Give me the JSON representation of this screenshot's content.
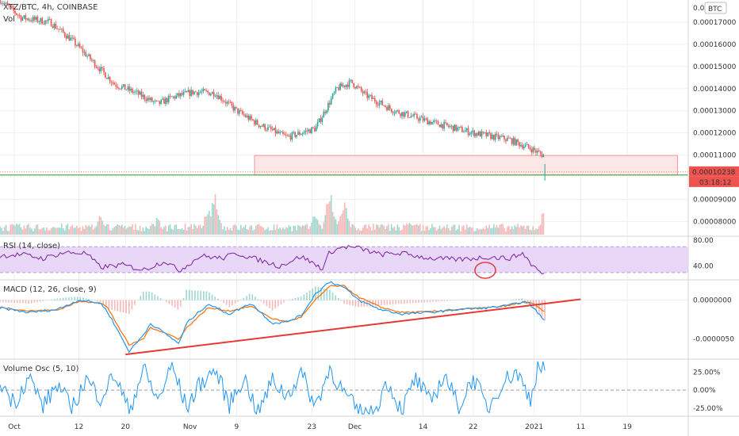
{
  "header": {
    "symbol_line": "XTZ/BTC, 4h, COINBASE",
    "vol_label": "Vol",
    "currency_badge": "BTC",
    "price_axis_top": "0.0("
  },
  "colors": {
    "up": "#26a69a",
    "down": "#ef5350",
    "rsi_line": "#7b1fa2",
    "rsi_band": "#e9d7f7",
    "macd_line": "#2196f3",
    "signal_line": "#ff6d00",
    "vol_osc_line": "#2196f3",
    "trendline": "#e53935",
    "support_line": "#4caf50",
    "zone_fill": "#fde6e6",
    "zone_border": "#ef9a9a",
    "price_tag_bg": "#ef5350"
  },
  "chart_data": [
    {
      "type": "candlestick",
      "panel": "price",
      "y_axis_labels": [
        "0.00017000",
        "0.00016000",
        "0.00015000",
        "0.00014000",
        "0.00013000",
        "0.00012000",
        "0.00011000",
        "0.00009000",
        "0.00008000"
      ],
      "ylim": [
        7.55e-05,
        0.00018
      ],
      "path": [
        {
          "x": 0,
          "y": 0.00018
        },
        {
          "x": 3,
          "y": 0.000172
        },
        {
          "x": 7,
          "y": 0.00017
        },
        {
          "x": 10,
          "y": 0.000162
        },
        {
          "x": 13,
          "y": 0.000152
        },
        {
          "x": 16,
          "y": 0.000142
        },
        {
          "x": 19,
          "y": 0.000138
        },
        {
          "x": 22,
          "y": 0.000133
        },
        {
          "x": 24,
          "y": 0.000136
        },
        {
          "x": 27,
          "y": 0.0001385
        },
        {
          "x": 30,
          "y": 0.000138
        },
        {
          "x": 33,
          "y": 0.00013
        },
        {
          "x": 36,
          "y": 0.000124
        },
        {
          "x": 40,
          "y": 0.000118
        },
        {
          "x": 44,
          "y": 0.000122
        },
        {
          "x": 47,
          "y": 0.00014
        },
        {
          "x": 49,
          "y": 0.000143
        },
        {
          "x": 51,
          "y": 0.000137
        },
        {
          "x": 55,
          "y": 0.00013
        },
        {
          "x": 60,
          "y": 0.000125
        },
        {
          "x": 66,
          "y": 0.00012
        },
        {
          "x": 71,
          "y": 0.000117
        },
        {
          "x": 74,
          "y": 0.000113
        },
        {
          "x": 76,
          "y": 0.0001095
        }
      ],
      "resistance_zone": {
        "x_start": 35.5,
        "x_end": 94.5,
        "y_low": 0.000101,
        "y_high": 0.0001098
      },
      "support_line_y": 0.000101,
      "last_price_label": "0.00010238",
      "last_price": 0.00010238,
      "countdown_label": "03:18:12"
    },
    {
      "type": "bar",
      "panel": "volume",
      "name": "Vol",
      "spikes": [
        {
          "x": 30,
          "value": 0.85
        },
        {
          "x": 29,
          "value": 0.55
        },
        {
          "x": 46,
          "value": 0.9
        },
        {
          "x": 48,
          "value": 0.7
        },
        {
          "x": 44,
          "value": 0.45
        },
        {
          "x": 76,
          "value": 0.6
        },
        {
          "x": 14,
          "value": 0.4
        },
        {
          "x": 22,
          "value": 0.35
        },
        {
          "x": 57,
          "value": 0.3
        }
      ]
    },
    {
      "type": "line",
      "panel": "rsi",
      "name": "RSI (14, close)",
      "y_axis_labels": [
        "80.00",
        "40.00"
      ],
      "ylim": [
        20,
        85
      ],
      "band": [
        30,
        70
      ],
      "x": [
        0,
        3,
        6,
        9,
        12,
        14,
        17,
        20,
        23,
        25,
        28,
        31,
        33,
        36,
        39,
        42,
        45,
        46,
        48,
        50,
        53,
        56,
        60,
        64,
        68,
        71,
        73,
        74,
        75,
        76
      ],
      "values": [
        56,
        58,
        52,
        61,
        60,
        38,
        42,
        34,
        48,
        33,
        56,
        52,
        60,
        50,
        40,
        55,
        36,
        62,
        70,
        68,
        58,
        60,
        52,
        50,
        54,
        52,
        60,
        44,
        34,
        25
      ]
    },
    {
      "type": "line",
      "panel": "macd",
      "name": "MACD (12, 26, close, 9)",
      "y_axis_labels": [
        "0.0000000",
        "-0.0000050"
      ],
      "ylim": [
        -7.5e-06,
        2.5e-06
      ],
      "x": [
        0,
        4,
        8,
        11,
        14,
        15,
        18,
        20,
        21,
        25,
        26,
        29,
        32,
        35,
        38,
        40,
        42,
        44,
        46,
        48,
        50,
        53,
        56,
        60,
        64,
        68,
        71,
        73,
        74,
        75,
        76
      ],
      "macd": [
        -1e-06,
        -1.6e-06,
        -1.2e-06,
        0,
        -4e-07,
        -1.5e-06,
        -6.6e-06,
        -4.5e-06,
        -3e-06,
        -5.6e-06,
        -3e-06,
        -5e-07,
        -1.8e-06,
        -4e-07,
        -3e-06,
        -2.8e-06,
        -2e-06,
        8e-07,
        2.4e-06,
        1.6e-06,
        0.0,
        -1.2e-06,
        -1.8e-06,
        -1.6e-06,
        -1.2e-06,
        -1e-06,
        -7e-07,
        -2e-07,
        -6e-07,
        -1.6e-06,
        -2.8e-06
      ],
      "signal": [
        -9e-07,
        -1.4e-06,
        -1.3e-06,
        -2e-07,
        -3e-07,
        -1e-06,
        -5.8e-06,
        -5e-06,
        -3.5e-06,
        -5e-06,
        -3.6e-06,
        -1e-06,
        -1.4e-06,
        -8e-07,
        -2.4e-06,
        -2.8e-06,
        -2.2e-06,
        0.0,
        1.8e-06,
        1.8e-06,
        4e-07,
        -9e-07,
        -1.6e-06,
        -1.5e-06,
        -1.2e-06,
        -1e-06,
        -7e-07,
        -3e-07,
        -3e-07,
        -9e-07,
        -1.6e-06
      ],
      "trendline": {
        "x1": 17.5,
        "y1": -7e-06,
        "x2": 81,
        "y2": 1e-07
      }
    },
    {
      "type": "line",
      "panel": "volume_osc",
      "name": "Volume Osc (5, 10)",
      "y_axis_labels": [
        "25.00%",
        "0.00%",
        "-25.00%"
      ],
      "ylim": [
        -35,
        42
      ],
      "x": [
        0,
        2,
        4,
        6,
        8,
        10,
        12,
        14,
        16,
        18,
        20,
        22,
        24,
        26,
        28,
        30,
        32,
        34,
        36,
        38,
        40,
        42,
        44,
        46,
        48,
        50,
        52,
        54,
        56,
        58,
        60,
        62,
        64,
        66,
        68,
        70,
        72,
        74,
        75,
        76
      ],
      "values": [
        12,
        -18,
        20,
        -22,
        8,
        -26,
        15,
        -10,
        22,
        -30,
        30,
        -15,
        34,
        -24,
        10,
        28,
        -20,
        18,
        -32,
        14,
        -8,
        24,
        -22,
        30,
        -5,
        -30,
        -34,
        12,
        -28,
        16,
        -18,
        22,
        -24,
        18,
        -26,
        10,
        26,
        -12,
        34,
        30
      ]
    },
    {
      "type": "axis",
      "panel": "time",
      "x_labels": [
        {
          "x": 2,
          "label": "Oct"
        },
        {
          "x": 11,
          "label": "12"
        },
        {
          "x": 17.5,
          "label": "20"
        },
        {
          "x": 26.5,
          "label": "Nov"
        },
        {
          "x": 33,
          "label": "9"
        },
        {
          "x": 43.5,
          "label": "23"
        },
        {
          "x": 49.5,
          "label": "Dec"
        },
        {
          "x": 59,
          "label": "14"
        },
        {
          "x": 66,
          "label": "22"
        },
        {
          "x": 74.5,
          "label": "2021"
        },
        {
          "x": 81,
          "label": "11"
        },
        {
          "x": 87.5,
          "label": "19"
        }
      ],
      "xlim": [
        0,
        96
      ]
    }
  ]
}
